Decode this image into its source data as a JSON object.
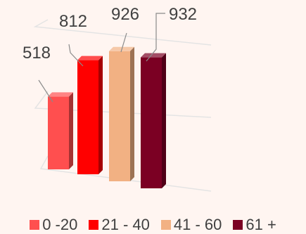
{
  "chart_data": {
    "type": "bar",
    "style": "3d-column",
    "categories": [
      "0 -20",
      "21 - 40",
      "41 - 60",
      "61 +"
    ],
    "values": [
      518,
      812,
      926,
      932
    ],
    "colors": [
      "#ff4f4f",
      "#ff0000",
      "#f2b183",
      "#7b0023"
    ],
    "data_labels": [
      "518",
      "812",
      "926",
      "932"
    ],
    "legend_position": "bottom",
    "grid": true,
    "title": "",
    "xlabel": "",
    "ylabel": "",
    "ylim": [
      0,
      1000
    ]
  }
}
